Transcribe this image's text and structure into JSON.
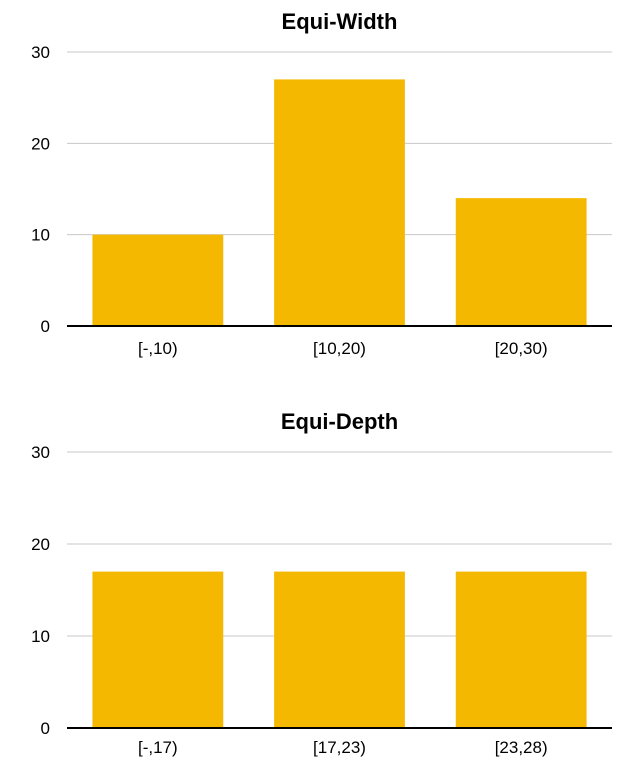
{
  "chart_data": [
    {
      "type": "bar",
      "title": "Equi-Width",
      "categories": [
        "[-,10)",
        "[10,20)",
        "[20,30)"
      ],
      "values": [
        10,
        27,
        14
      ],
      "ylim": [
        0,
        30
      ],
      "yticks": [
        "0",
        "10",
        "20",
        "30"
      ],
      "grid": true,
      "bar_color": "#F5B800"
    },
    {
      "type": "bar",
      "title": "Equi-Depth",
      "categories": [
        "[-,17)",
        "[17,23)",
        "[23,28)"
      ],
      "values": [
        17,
        17,
        17
      ],
      "ylim": [
        0,
        30
      ],
      "yticks": [
        "0",
        "10",
        "20",
        "30"
      ],
      "grid": true,
      "bar_color": "#F5B800"
    }
  ]
}
